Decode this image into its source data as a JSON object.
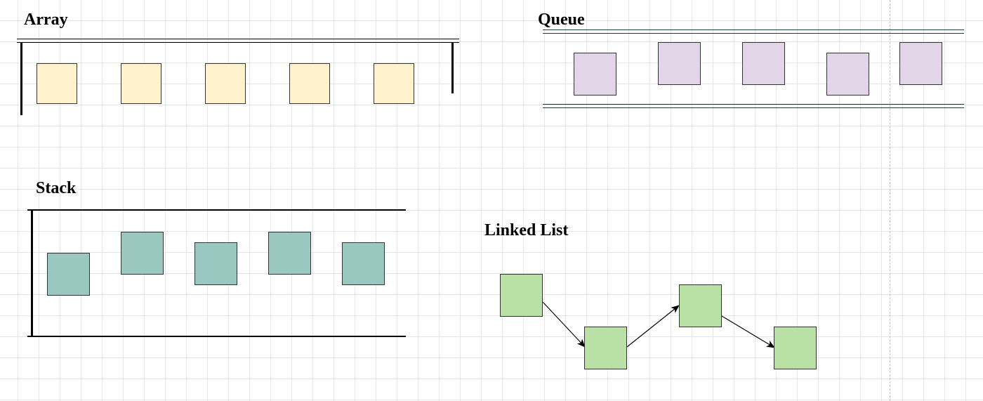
{
  "colors": {
    "array_fill": "#fff2cc",
    "queue_fill": "#e1d5e7",
    "stack_fill": "#9ac7bf",
    "linked_list_fill": "#b9e0a5",
    "queue_line": "#1f3d2d",
    "border": "#333333"
  },
  "diagram": {
    "array": {
      "title": "Array",
      "node_count": 5
    },
    "queue": {
      "title": "Queue",
      "node_count": 5
    },
    "stack": {
      "title": "Stack",
      "node_count": 5
    },
    "linked_list": {
      "title": "Linked List",
      "node_count": 4,
      "edges": [
        [
          0,
          1
        ],
        [
          1,
          2
        ],
        [
          2,
          3
        ]
      ]
    }
  }
}
